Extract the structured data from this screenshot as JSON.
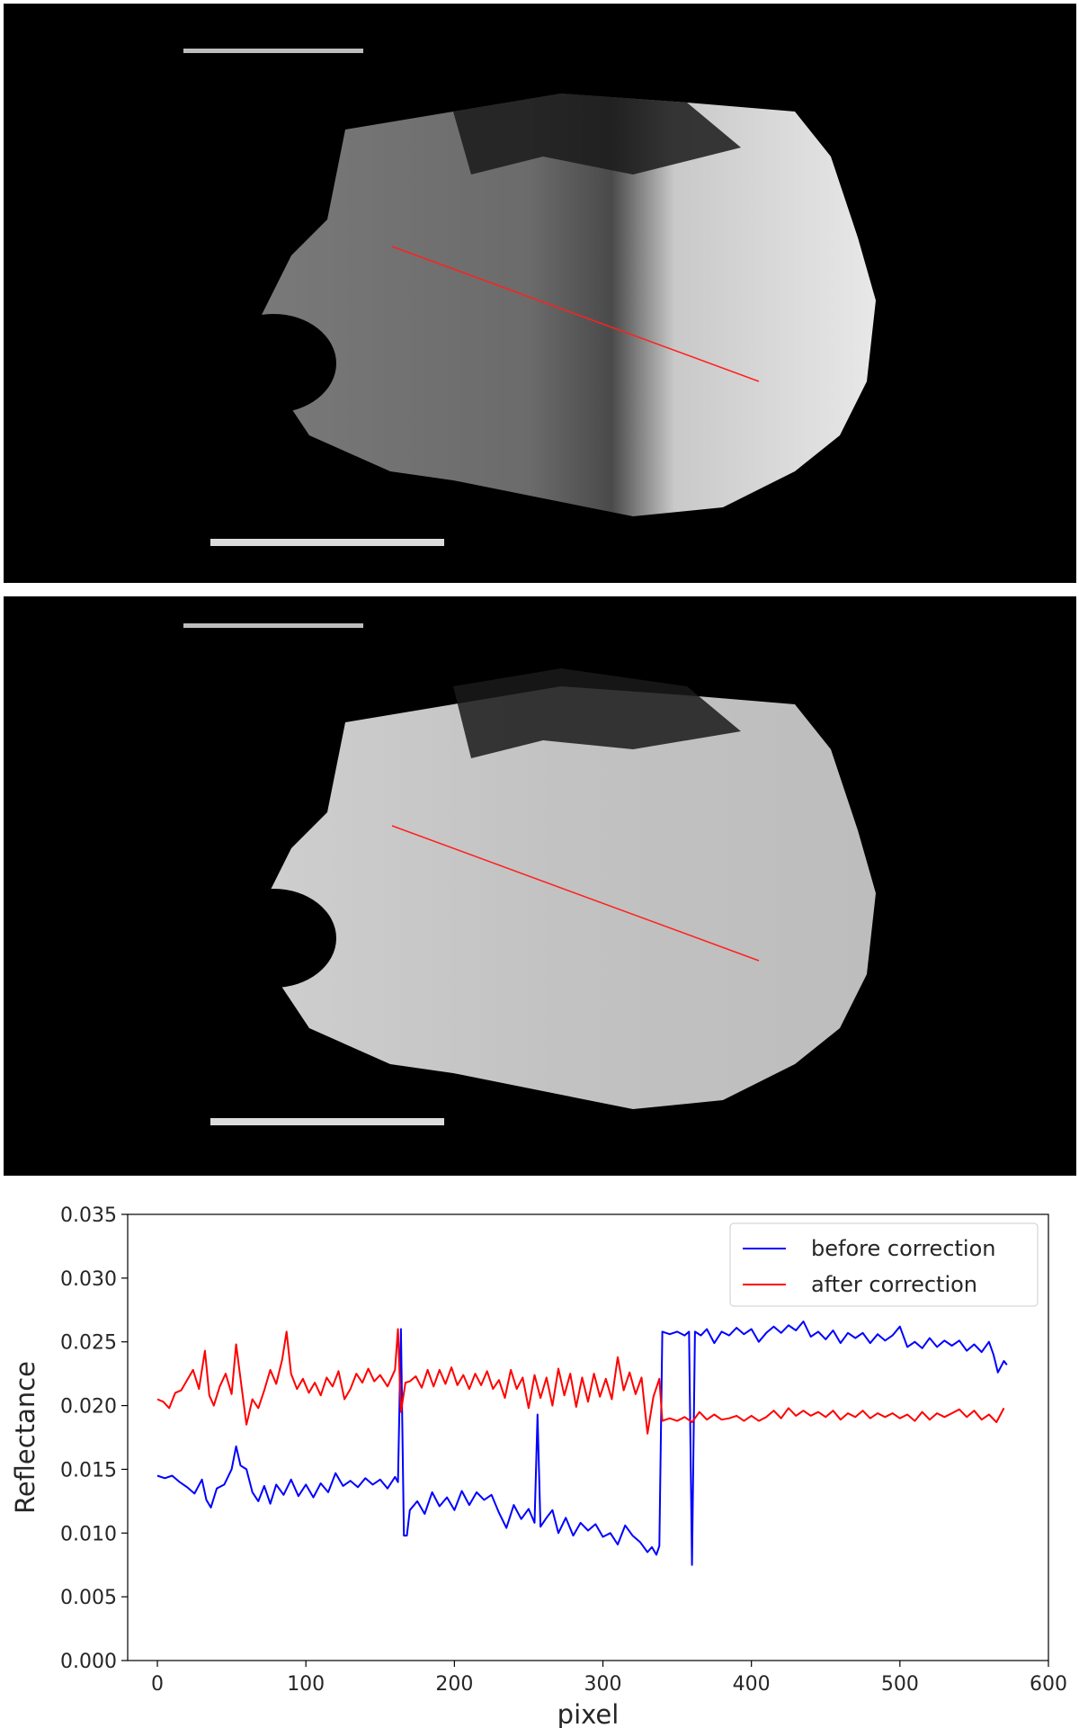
{
  "images": [
    {
      "name": "before-correction-image",
      "description_marker": "red transect line across shaded asteroid surface"
    },
    {
      "name": "after-correction-image",
      "description_marker": "red transect line across corrected asteroid surface"
    }
  ],
  "transect_color": "#ff2020",
  "chart_data": {
    "type": "line",
    "xlabel": "pixel",
    "ylabel": "Reflectance",
    "xlim": [
      -20,
      600
    ],
    "ylim": [
      0.0,
      0.035
    ],
    "xticks": [
      0,
      100,
      200,
      300,
      400,
      500,
      600
    ],
    "yticks": [
      0.0,
      0.005,
      0.01,
      0.015,
      0.02,
      0.025,
      0.03,
      0.035
    ],
    "xtick_labels": [
      "0",
      "100",
      "200",
      "300",
      "400",
      "500",
      "600"
    ],
    "ytick_labels": [
      "0.000",
      "0.005",
      "0.010",
      "0.015",
      "0.020",
      "0.025",
      "0.030",
      "0.035"
    ],
    "grid": false,
    "legend_position": "top-right",
    "series": [
      {
        "name": "before correction",
        "color": "#0000ff",
        "points": [
          [
            0,
            0.0145
          ],
          [
            5,
            0.0143
          ],
          [
            10,
            0.0145
          ],
          [
            15,
            0.014
          ],
          [
            20,
            0.0136
          ],
          [
            25,
            0.0131
          ],
          [
            30,
            0.0142
          ],
          [
            33,
            0.0126
          ],
          [
            36,
            0.012
          ],
          [
            40,
            0.0135
          ],
          [
            45,
            0.0138
          ],
          [
            50,
            0.015
          ],
          [
            53,
            0.0168
          ],
          [
            56,
            0.0153
          ],
          [
            60,
            0.015
          ],
          [
            64,
            0.0132
          ],
          [
            68,
            0.0125
          ],
          [
            72,
            0.0137
          ],
          [
            76,
            0.0123
          ],
          [
            80,
            0.0138
          ],
          [
            85,
            0.013
          ],
          [
            90,
            0.0142
          ],
          [
            95,
            0.0129
          ],
          [
            100,
            0.0138
          ],
          [
            105,
            0.0128
          ],
          [
            110,
            0.0139
          ],
          [
            115,
            0.0132
          ],
          [
            120,
            0.0147
          ],
          [
            125,
            0.0137
          ],
          [
            130,
            0.0141
          ],
          [
            135,
            0.0136
          ],
          [
            140,
            0.0143
          ],
          [
            145,
            0.0138
          ],
          [
            150,
            0.0142
          ],
          [
            155,
            0.0135
          ],
          [
            160,
            0.0144
          ],
          [
            162,
            0.014
          ],
          [
            164,
            0.026
          ],
          [
            166,
            0.0098
          ],
          [
            168,
            0.0098
          ],
          [
            170,
            0.0118
          ],
          [
            175,
            0.0125
          ],
          [
            180,
            0.0115
          ],
          [
            185,
            0.0132
          ],
          [
            190,
            0.0121
          ],
          [
            195,
            0.0128
          ],
          [
            200,
            0.0118
          ],
          [
            205,
            0.0133
          ],
          [
            210,
            0.0122
          ],
          [
            215,
            0.0132
          ],
          [
            220,
            0.0126
          ],
          [
            225,
            0.013
          ],
          [
            230,
            0.0116
          ],
          [
            235,
            0.0104
          ],
          [
            240,
            0.0122
          ],
          [
            245,
            0.0111
          ],
          [
            250,
            0.0119
          ],
          [
            254,
            0.0108
          ],
          [
            256,
            0.0193
          ],
          [
            258,
            0.0105
          ],
          [
            262,
            0.0112
          ],
          [
            266,
            0.0118
          ],
          [
            270,
            0.01
          ],
          [
            275,
            0.0112
          ],
          [
            280,
            0.0098
          ],
          [
            285,
            0.0108
          ],
          [
            290,
            0.0102
          ],
          [
            295,
            0.0107
          ],
          [
            300,
            0.0097
          ],
          [
            305,
            0.01
          ],
          [
            310,
            0.0091
          ],
          [
            315,
            0.0106
          ],
          [
            320,
            0.0098
          ],
          [
            325,
            0.0093
          ],
          [
            330,
            0.0085
          ],
          [
            333,
            0.0089
          ],
          [
            336,
            0.0083
          ],
          [
            338,
            0.009
          ],
          [
            340,
            0.0258
          ],
          [
            345,
            0.0256
          ],
          [
            350,
            0.0258
          ],
          [
            355,
            0.0255
          ],
          [
            358,
            0.0258
          ],
          [
            360,
            0.0075
          ],
          [
            362,
            0.0258
          ],
          [
            366,
            0.0255
          ],
          [
            370,
            0.026
          ],
          [
            375,
            0.0249
          ],
          [
            380,
            0.0258
          ],
          [
            385,
            0.0255
          ],
          [
            390,
            0.0261
          ],
          [
            395,
            0.0256
          ],
          [
            400,
            0.026
          ],
          [
            405,
            0.025
          ],
          [
            410,
            0.0257
          ],
          [
            415,
            0.0262
          ],
          [
            420,
            0.0257
          ],
          [
            425,
            0.0263
          ],
          [
            430,
            0.0259
          ],
          [
            435,
            0.0266
          ],
          [
            440,
            0.0254
          ],
          [
            445,
            0.0258
          ],
          [
            450,
            0.0252
          ],
          [
            455,
            0.0259
          ],
          [
            460,
            0.0249
          ],
          [
            465,
            0.0257
          ],
          [
            470,
            0.0253
          ],
          [
            475,
            0.0257
          ],
          [
            480,
            0.0249
          ],
          [
            485,
            0.0256
          ],
          [
            490,
            0.0251
          ],
          [
            495,
            0.0255
          ],
          [
            500,
            0.0262
          ],
          [
            505,
            0.0246
          ],
          [
            510,
            0.025
          ],
          [
            515,
            0.0245
          ],
          [
            520,
            0.0253
          ],
          [
            525,
            0.0246
          ],
          [
            530,
            0.0251
          ],
          [
            535,
            0.0247
          ],
          [
            540,
            0.0251
          ],
          [
            545,
            0.0243
          ],
          [
            550,
            0.0248
          ],
          [
            555,
            0.0242
          ],
          [
            560,
            0.025
          ],
          [
            563,
            0.024
          ],
          [
            566,
            0.0226
          ],
          [
            570,
            0.0235
          ],
          [
            572,
            0.0232
          ]
        ]
      },
      {
        "name": "after correction",
        "color": "#ff0000",
        "points": [
          [
            0,
            0.0205
          ],
          [
            4,
            0.0203
          ],
          [
            8,
            0.0198
          ],
          [
            12,
            0.021
          ],
          [
            16,
            0.0212
          ],
          [
            20,
            0.022
          ],
          [
            24,
            0.0228
          ],
          [
            28,
            0.0213
          ],
          [
            32,
            0.0243
          ],
          [
            35,
            0.0208
          ],
          [
            38,
            0.02
          ],
          [
            42,
            0.0215
          ],
          [
            46,
            0.0225
          ],
          [
            50,
            0.0209
          ],
          [
            53,
            0.0248
          ],
          [
            56,
            0.0221
          ],
          [
            60,
            0.0185
          ],
          [
            64,
            0.0205
          ],
          [
            68,
            0.0198
          ],
          [
            72,
            0.0212
          ],
          [
            76,
            0.0228
          ],
          [
            80,
            0.0217
          ],
          [
            84,
            0.0236
          ],
          [
            87,
            0.0258
          ],
          [
            90,
            0.0225
          ],
          [
            94,
            0.0213
          ],
          [
            98,
            0.0221
          ],
          [
            102,
            0.021
          ],
          [
            106,
            0.0218
          ],
          [
            110,
            0.0208
          ],
          [
            114,
            0.0222
          ],
          [
            118,
            0.0215
          ],
          [
            122,
            0.0227
          ],
          [
            126,
            0.0205
          ],
          [
            130,
            0.0213
          ],
          [
            134,
            0.0225
          ],
          [
            138,
            0.0218
          ],
          [
            142,
            0.0229
          ],
          [
            146,
            0.0219
          ],
          [
            150,
            0.0224
          ],
          [
            155,
            0.0215
          ],
          [
            160,
            0.0228
          ],
          [
            162,
            0.026
          ],
          [
            164,
            0.0195
          ],
          [
            167,
            0.0218
          ],
          [
            170,
            0.0219
          ],
          [
            174,
            0.0223
          ],
          [
            178,
            0.0214
          ],
          [
            182,
            0.0228
          ],
          [
            186,
            0.0215
          ],
          [
            190,
            0.0228
          ],
          [
            194,
            0.0217
          ],
          [
            198,
            0.023
          ],
          [
            202,
            0.0216
          ],
          [
            206,
            0.0224
          ],
          [
            210,
            0.0213
          ],
          [
            214,
            0.0225
          ],
          [
            218,
            0.0216
          ],
          [
            222,
            0.0227
          ],
          [
            226,
            0.0213
          ],
          [
            230,
            0.022
          ],
          [
            234,
            0.0206
          ],
          [
            238,
            0.0228
          ],
          [
            242,
            0.0213
          ],
          [
            246,
            0.0222
          ],
          [
            250,
            0.0198
          ],
          [
            254,
            0.0224
          ],
          [
            258,
            0.0206
          ],
          [
            262,
            0.0222
          ],
          [
            266,
            0.02
          ],
          [
            270,
            0.0229
          ],
          [
            274,
            0.0208
          ],
          [
            278,
            0.0225
          ],
          [
            282,
            0.0199
          ],
          [
            286,
            0.0222
          ],
          [
            290,
            0.0203
          ],
          [
            294,
            0.0225
          ],
          [
            298,
            0.0207
          ],
          [
            302,
            0.0221
          ],
          [
            306,
            0.0205
          ],
          [
            310,
            0.0238
          ],
          [
            314,
            0.0212
          ],
          [
            318,
            0.0226
          ],
          [
            322,
            0.0209
          ],
          [
            326,
            0.0222
          ],
          [
            330,
            0.0178
          ],
          [
            334,
            0.0207
          ],
          [
            338,
            0.0221
          ],
          [
            340,
            0.0188
          ],
          [
            345,
            0.019
          ],
          [
            350,
            0.0188
          ],
          [
            355,
            0.0191
          ],
          [
            360,
            0.0187
          ],
          [
            365,
            0.0195
          ],
          [
            370,
            0.0189
          ],
          [
            375,
            0.0193
          ],
          [
            380,
            0.0189
          ],
          [
            385,
            0.019
          ],
          [
            390,
            0.0192
          ],
          [
            395,
            0.0188
          ],
          [
            400,
            0.0192
          ],
          [
            405,
            0.0188
          ],
          [
            410,
            0.0191
          ],
          [
            415,
            0.0196
          ],
          [
            420,
            0.019
          ],
          [
            425,
            0.0198
          ],
          [
            430,
            0.0192
          ],
          [
            435,
            0.0196
          ],
          [
            440,
            0.0192
          ],
          [
            445,
            0.0195
          ],
          [
            450,
            0.0191
          ],
          [
            455,
            0.0196
          ],
          [
            460,
            0.0189
          ],
          [
            465,
            0.0194
          ],
          [
            470,
            0.0191
          ],
          [
            475,
            0.0196
          ],
          [
            480,
            0.019
          ],
          [
            485,
            0.0194
          ],
          [
            490,
            0.0191
          ],
          [
            495,
            0.0194
          ],
          [
            500,
            0.019
          ],
          [
            505,
            0.0193
          ],
          [
            510,
            0.0188
          ],
          [
            515,
            0.0195
          ],
          [
            520,
            0.0189
          ],
          [
            525,
            0.0194
          ],
          [
            530,
            0.0191
          ],
          [
            535,
            0.0194
          ],
          [
            540,
            0.0197
          ],
          [
            545,
            0.0191
          ],
          [
            550,
            0.0196
          ],
          [
            555,
            0.0189
          ],
          [
            560,
            0.0193
          ],
          [
            565,
            0.0187
          ],
          [
            570,
            0.0198
          ]
        ]
      }
    ]
  }
}
